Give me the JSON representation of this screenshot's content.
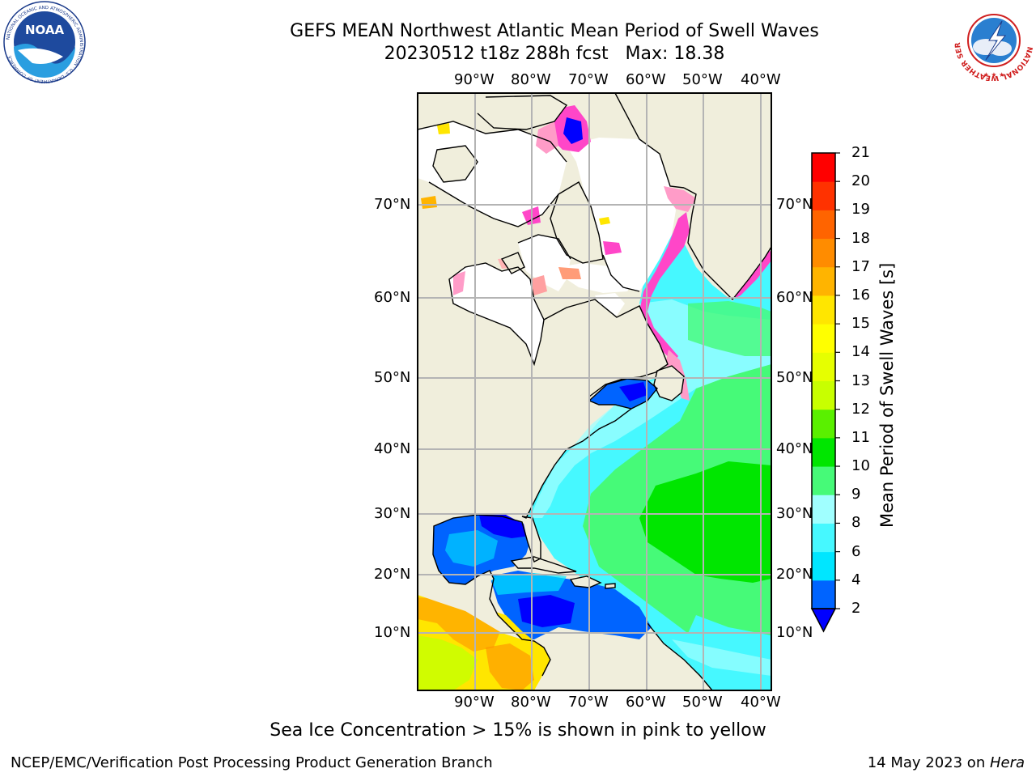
{
  "header": {
    "title_line1": "GEFS MEAN Northwest Atlantic Mean Period of Swell Waves",
    "title_line2": "20230512 t18z 288h fcst   Max: 18.38"
  },
  "logos": {
    "left": {
      "name": "noaa-logo",
      "text": "NOAA",
      "ring_text": "NATIONAL OCEANIC AND ATMOSPHERIC ADMINISTRATION · U.S. DEPARTMENT OF COMMERCE"
    },
    "right": {
      "name": "nws-logo",
      "ring_text": "NATIONAL WEATHER SERVICE"
    }
  },
  "map": {
    "lon_labels": [
      "90°W",
      "80°W",
      "70°W",
      "60°W",
      "50°W",
      "40°W"
    ],
    "lat_labels": [
      "70°N",
      "60°N",
      "50°N",
      "40°N",
      "30°N",
      "20°N",
      "10°N"
    ],
    "colors": {
      "land": "#f0eedc",
      "ice_free_white": "#ffffff",
      "grid": "#b4b4b4"
    }
  },
  "colorbar": {
    "label": "Mean Period of Swell Waves [s]",
    "ticks": [
      "2",
      "4",
      "6",
      "8",
      "9",
      "10",
      "11",
      "12",
      "13",
      "14",
      "15",
      "16",
      "17",
      "18",
      "19",
      "20",
      "21"
    ],
    "colors": [
      "#0064ff",
      "#00e6ff",
      "#46f8ff",
      "#a0ffff",
      "#46fa78",
      "#00e600",
      "#5af000",
      "#c8ff00",
      "#e6ff00",
      "#ffff00",
      "#ffe600",
      "#ffb400",
      "#ff8c00",
      "#ff6400",
      "#ff3200",
      "#ff0000"
    ],
    "under_color": "#0000ff"
  },
  "note": "Sea Ice Concentration > 15% is shown in pink to yellow",
  "footer": {
    "left": "NCEP/EMC/Verification Post Processing Product Generation Branch",
    "right_date": "14 May 2023 on ",
    "right_host": "Hera"
  }
}
